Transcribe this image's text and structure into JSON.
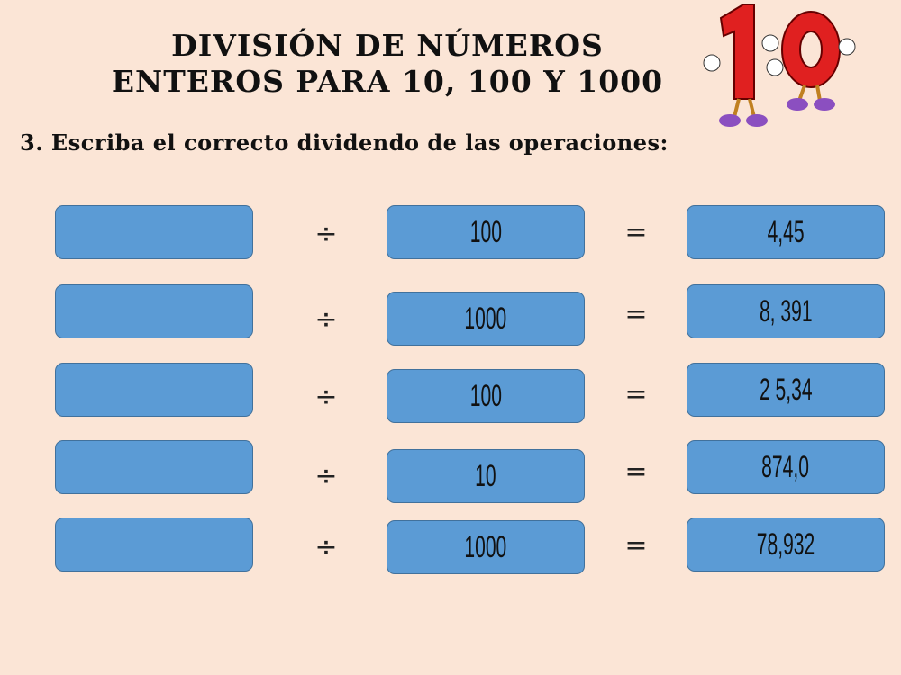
{
  "title": {
    "line1": "DIVISIÓN DE NÚMEROS",
    "line2": "ENTEROS PARA 10, 100 Y 1000"
  },
  "instruction": "3. Escriba el correcto dividendo de las operaciones:",
  "colors": {
    "background": "#fbe5d6",
    "box_fill": "#5b9bd5",
    "box_border": "#41719c"
  },
  "icons": {
    "mascot": "number-10-cartoon"
  },
  "operator_division": "÷",
  "operator_equals": "=",
  "rows": [
    {
      "dividend": "",
      "divisor": "100",
      "result": "4,45"
    },
    {
      "dividend": "",
      "divisor": "1000",
      "result": "8, 391"
    },
    {
      "dividend": "",
      "divisor": "100",
      "result": "2 5,34"
    },
    {
      "dividend": "",
      "divisor": "10",
      "result": "874,0"
    },
    {
      "dividend": "",
      "divisor": "1000",
      "result": "78,932"
    }
  ]
}
